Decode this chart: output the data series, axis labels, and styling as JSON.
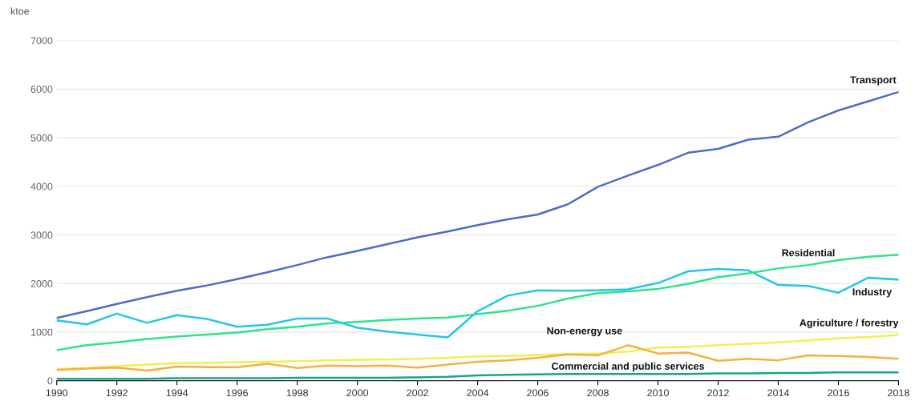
{
  "chart_data": {
    "type": "line",
    "ylabel": "ktoe",
    "x": [
      1990,
      1991,
      1992,
      1993,
      1994,
      1995,
      1996,
      1997,
      1998,
      1999,
      2000,
      2001,
      2002,
      2003,
      2004,
      2005,
      2006,
      2007,
      2008,
      2009,
      2010,
      2011,
      2012,
      2013,
      2014,
      2015,
      2016,
      2017,
      2018
    ],
    "series": [
      {
        "name": "Transport",
        "color": "#4a6fc7",
        "values": [
          1290,
          1430,
          1580,
          1720,
          1850,
          1960,
          2090,
          2230,
          2380,
          2540,
          2670,
          2810,
          2950,
          3070,
          3200,
          3320,
          3420,
          3630,
          3990,
          4220,
          4440,
          4690,
          4770,
          4960,
          5020,
          5320,
          5560,
          5750,
          5940
        ]
      },
      {
        "name": "Industry",
        "color": "#22c7e8",
        "values": [
          1240,
          1160,
          1380,
          1190,
          1350,
          1270,
          1110,
          1150,
          1280,
          1280,
          1090,
          1010,
          950,
          890,
          1430,
          1750,
          1860,
          1850,
          1860,
          1880,
          2010,
          2250,
          2300,
          2270,
          1970,
          1950,
          1810,
          2120,
          2080
        ]
      },
      {
        "name": "Residential",
        "color": "#2ee38a",
        "values": [
          630,
          730,
          790,
          860,
          910,
          950,
          990,
          1060,
          1110,
          1180,
          1210,
          1250,
          1280,
          1300,
          1370,
          1440,
          1540,
          1690,
          1800,
          1840,
          1890,
          1990,
          2130,
          2210,
          2310,
          2380,
          2480,
          2550,
          2590
        ]
      },
      {
        "name": "Agriculture / forestry",
        "color": "#f0ef50",
        "values": [
          240,
          260,
          300,
          330,
          360,
          370,
          380,
          390,
          400,
          420,
          430,
          440,
          450,
          470,
          500,
          510,
          530,
          550,
          560,
          600,
          680,
          700,
          730,
          760,
          790,
          830,
          870,
          900,
          940
        ]
      },
      {
        "name": "Non-energy use",
        "color": "#f5b041",
        "values": [
          220,
          250,
          270,
          210,
          290,
          280,
          280,
          350,
          260,
          310,
          300,
          310,
          270,
          330,
          390,
          420,
          470,
          540,
          520,
          730,
          560,
          580,
          410,
          450,
          420,
          520,
          510,
          490,
          450
        ]
      },
      {
        "name": "Commercial and public services",
        "color": "#17a589",
        "values": [
          40,
          40,
          40,
          40,
          50,
          50,
          50,
          50,
          60,
          60,
          60,
          60,
          70,
          80,
          110,
          120,
          130,
          140,
          140,
          140,
          140,
          140,
          150,
          150,
          160,
          160,
          170,
          170,
          170
        ]
      }
    ],
    "xlim": [
      1990,
      2018
    ],
    "xticks": [
      1990,
      1992,
      1994,
      1996,
      1998,
      2000,
      2002,
      2004,
      2006,
      2008,
      2010,
      2012,
      2014,
      2016,
      2018
    ],
    "ylim": [
      0,
      7000
    ],
    "yticks": [
      0,
      1000,
      2000,
      3000,
      4000,
      5000,
      6000,
      7000
    ],
    "grid": "y",
    "legend": false,
    "marker": "none",
    "line_style": "solid"
  }
}
